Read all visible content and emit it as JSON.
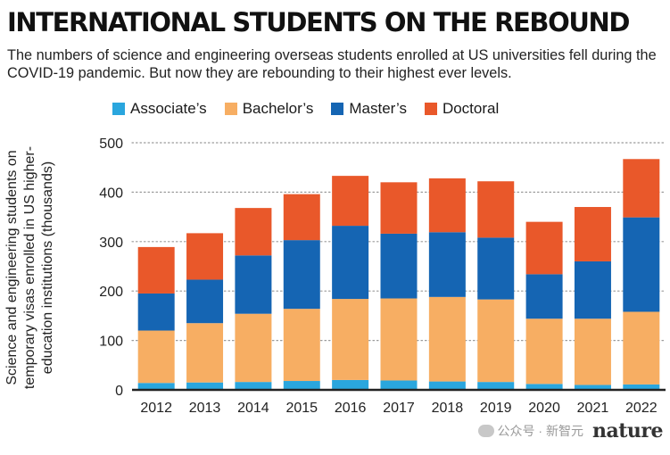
{
  "header": {
    "title": "INTERNATIONAL STUDENTS ON THE REBOUND",
    "subtitle": "The numbers of science and engineering overseas students enrolled at US universities fell during the COVID-19 pandemic. But now they are rebounding to their highest ever levels."
  },
  "footer": {
    "watermark": "公众号 · 新智元",
    "brand": "nature"
  },
  "colors": {
    "associate": "#2aa6de",
    "bachelor": "#f7ae63",
    "master": "#1565b3",
    "doctoral": "#e9582a",
    "grid": "#9a9a9a",
    "axis": "#222222"
  },
  "chart_data": {
    "type": "bar",
    "stacked": true,
    "title": "INTERNATIONAL STUDENTS ON THE REBOUND",
    "ylabel": "Science and engineering students on temporary visas enrolled in US higher-education institutions (thousands)",
    "xlabel": "",
    "ylim": [
      0,
      500
    ],
    "yticks": [
      0,
      100,
      200,
      300,
      400,
      500
    ],
    "grid": "horizontal-dotted",
    "legend": "top",
    "categories": [
      "2012",
      "2013",
      "2014",
      "2015",
      "2016",
      "2017",
      "2018",
      "2019",
      "2020",
      "2021",
      "2022"
    ],
    "series": [
      {
        "name": "Associate’s",
        "color": "#2aa6de",
        "values": [
          14,
          15,
          16,
          18,
          20,
          19,
          17,
          16,
          12,
          10,
          11
        ]
      },
      {
        "name": "Bachelor’s",
        "color": "#f7ae63",
        "values": [
          106,
          120,
          138,
          146,
          164,
          166,
          171,
          167,
          132,
          134,
          147
        ]
      },
      {
        "name": "Master’s",
        "color": "#1565b3",
        "values": [
          75,
          88,
          118,
          139,
          148,
          131,
          131,
          125,
          90,
          116,
          191
        ]
      },
      {
        "name": "Doctoral",
        "color": "#e9582a",
        "values": [
          94,
          94,
          96,
          93,
          101,
          104,
          109,
          114,
          106,
          110,
          118
        ]
      }
    ]
  }
}
